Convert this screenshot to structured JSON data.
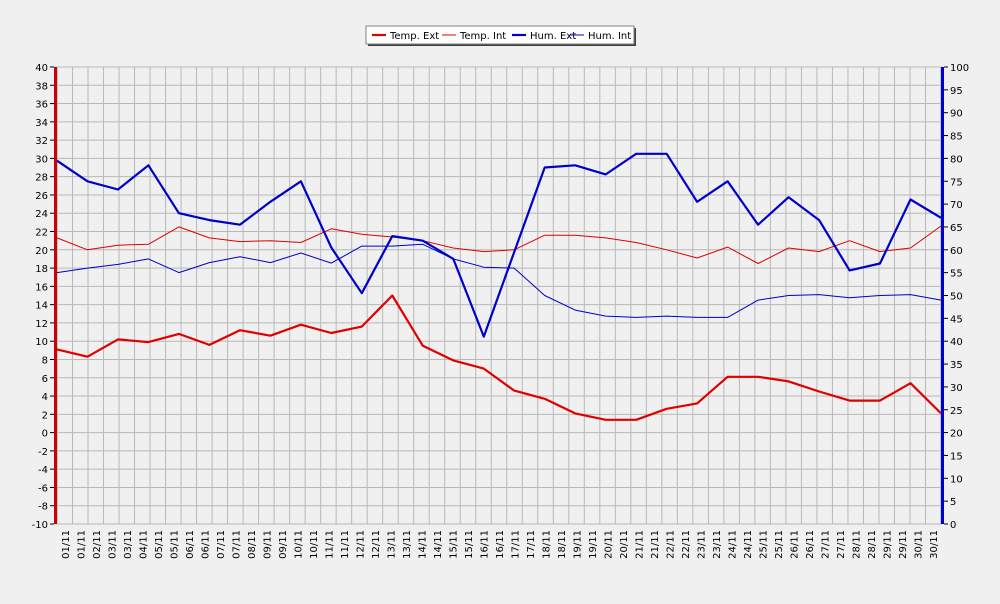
{
  "chart_data": {
    "type": "line",
    "categories": [
      "01/11",
      "01/11",
      "02/11",
      "03/11",
      "03/11",
      "04/11",
      "05/11",
      "05/11",
      "06/11",
      "06/11",
      "07/11",
      "07/11",
      "08/11",
      "09/11",
      "09/11",
      "10/11",
      "10/11",
      "11/11",
      "11/11",
      "12/11",
      "12/11",
      "13/11",
      "13/11",
      "14/11",
      "14/11",
      "15/11",
      "15/11",
      "16/11",
      "16/11",
      "17/11",
      "17/11",
      "18/11",
      "18/11",
      "19/11",
      "19/11",
      "20/11",
      "20/11",
      "21/11",
      "21/11",
      "22/11",
      "22/11",
      "23/11",
      "23/11",
      "24/11",
      "24/11",
      "25/11",
      "25/11",
      "26/11",
      "26/11",
      "27/11",
      "27/11",
      "28/11",
      "28/11",
      "29/11",
      "29/11",
      "30/11",
      "30/11"
    ],
    "y_left": {
      "min": -10,
      "max": 40,
      "step": 2,
      "color": "#cc0000"
    },
    "y_right": {
      "min": 0,
      "max": 100,
      "step": 5,
      "color": "#0000cc"
    },
    "grid": true,
    "legend_position": "top-center",
    "series": [
      {
        "name": "Temp. Ext",
        "color": "#e00000",
        "width": 2.2,
        "axis": "left",
        "x": [
          1,
          2,
          3,
          4,
          5,
          6,
          7,
          8,
          9,
          10,
          11,
          12,
          13,
          14,
          15,
          16,
          17,
          18,
          19,
          20,
          21,
          22,
          23,
          24,
          25,
          26,
          27,
          28,
          29,
          30
        ],
        "values": [
          9.1,
          8.3,
          10.2,
          9.9,
          10.8,
          9.6,
          11.2,
          10.6,
          11.8,
          10.9,
          11.6,
          15.0,
          9.5,
          7.9,
          7.0,
          4.6,
          3.7,
          2.1,
          1.4,
          1.4,
          2.6,
          3.2,
          6.1,
          6.1,
          5.6,
          4.5,
          3.5,
          3.5,
          5.4,
          2.1
        ]
      },
      {
        "name": "Temp. Int",
        "color": "#e00000",
        "width": 1,
        "axis": "left",
        "x": [
          1,
          2,
          3,
          4,
          5,
          6,
          7,
          8,
          9,
          10,
          11,
          12,
          13,
          14,
          15,
          16,
          17,
          18,
          19,
          20,
          21,
          22,
          23,
          24,
          25,
          26,
          27,
          28,
          29,
          30
        ],
        "values": [
          21.3,
          20.0,
          20.5,
          20.6,
          22.5,
          21.3,
          20.9,
          21.0,
          20.8,
          22.3,
          21.7,
          21.4,
          21.0,
          20.2,
          19.8,
          20.0,
          21.6,
          21.6,
          21.3,
          20.8,
          20.0,
          19.1,
          20.3,
          18.5,
          20.2,
          19.8,
          21.0,
          19.8,
          20.2,
          22.6
        ]
      },
      {
        "name": "Hum. Ext",
        "color": "#0000cc",
        "width": 2.2,
        "axis": "right",
        "x": [
          1,
          2,
          3,
          4,
          5,
          6,
          7,
          8,
          9,
          10,
          11,
          12,
          13,
          14,
          15,
          16,
          17,
          18,
          19,
          20,
          21,
          22,
          23,
          24,
          25,
          26,
          27,
          28,
          29,
          30
        ],
        "values": [
          79.5,
          75.0,
          73.2,
          78.5,
          68.0,
          66.5,
          65.5,
          70.5,
          75.0,
          60.5,
          50.5,
          63.0,
          62.0,
          58.0,
          41.0,
          59.5,
          78.0,
          78.5,
          76.5,
          81.0,
          81.0,
          70.5,
          75.0,
          65.5,
          71.5,
          66.5,
          55.5,
          57.0,
          71.0,
          67.0
        ]
      },
      {
        "name": "Hum. Int",
        "color": "#0000cc",
        "width": 1,
        "axis": "right",
        "x": [
          1,
          2,
          3,
          4,
          5,
          6,
          7,
          8,
          9,
          10,
          11,
          12,
          13,
          14,
          15,
          16,
          17,
          18,
          19,
          20,
          21,
          22,
          23,
          24,
          25,
          26,
          27,
          28,
          29,
          30
        ],
        "values": [
          55.0,
          56.0,
          56.8,
          58.0,
          55.0,
          57.2,
          58.5,
          57.2,
          59.3,
          57.1,
          60.8,
          60.8,
          61.2,
          58.0,
          56.2,
          56.0,
          50.0,
          46.8,
          45.5,
          45.2,
          45.5,
          45.2,
          45.2,
          49.0,
          50.0,
          50.2,
          49.5,
          50.0,
          50.2,
          49.0
        ]
      }
    ]
  }
}
